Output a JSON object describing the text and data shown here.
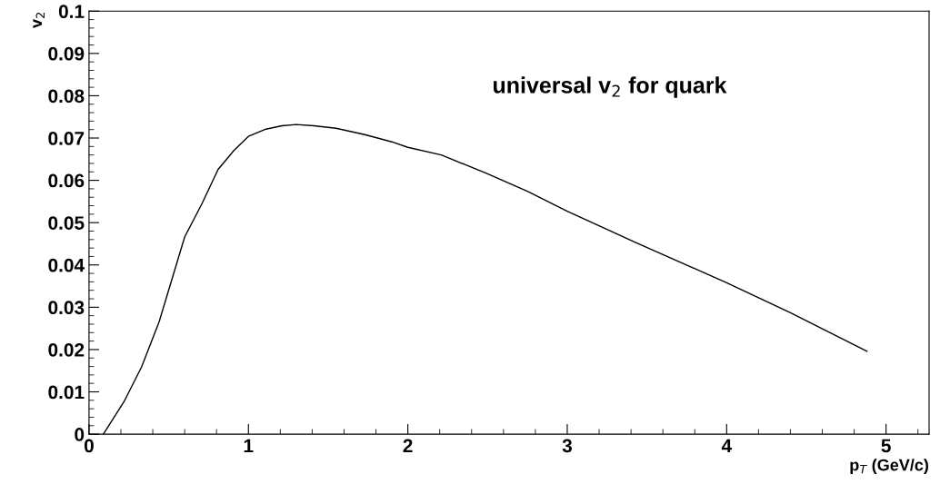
{
  "chart_data": {
    "type": "line",
    "xlabel": "p$_{T}$ (GeV/c)",
    "ylabel": "v$_{2}$",
    "annotations": [
      "universal v$_{2}$ for quark"
    ],
    "x": [
      0.09,
      0.22,
      0.33,
      0.44,
      0.6,
      0.71,
      0.81,
      0.91,
      1.0,
      1.11,
      1.21,
      1.3,
      1.41,
      1.55,
      1.73,
      1.9,
      2.0,
      2.21,
      2.49,
      2.75,
      3.0,
      3.43,
      4.0,
      4.4,
      4.88
    ],
    "series": [
      {
        "color": "#000000",
        "values": [
          0,
          0.0077,
          0.0159,
          0.0266,
          0.0466,
          0.0546,
          0.0626,
          0.0671,
          0.0704,
          0.0721,
          0.0729,
          0.0732,
          0.0729,
          0.0723,
          0.0708,
          0.0691,
          0.0678,
          0.066,
          0.0617,
          0.0574,
          0.0527,
          0.0453,
          0.0358,
          0.0287,
          0.0196
        ]
      }
    ],
    "xlim": [
      0,
      5.27
    ],
    "ylim": [
      0,
      0.1
    ],
    "xticks": [
      0,
      1,
      2,
      3,
      4,
      5
    ],
    "yticks": [
      0,
      0.01,
      0.02,
      0.03,
      0.04,
      0.05,
      0.06,
      0.07,
      0.08,
      0.09,
      0.1
    ],
    "grid": false,
    "legend": false,
    "marker": "none",
    "line_style": "solid"
  }
}
